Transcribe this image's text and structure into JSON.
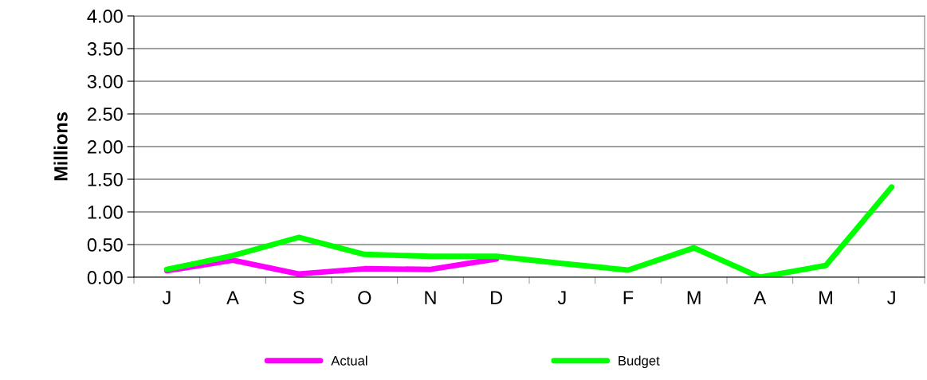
{
  "chart_data": {
    "type": "line",
    "ylabel": "Millions",
    "categories": [
      "J",
      "A",
      "S",
      "O",
      "N",
      "D",
      "J",
      "F",
      "M",
      "A",
      "M",
      "J"
    ],
    "series": [
      {
        "name": "Actual",
        "color": "#ff00ff",
        "values": [
          0.1,
          0.26,
          0.05,
          0.13,
          0.12,
          0.28,
          null,
          null,
          null,
          null,
          null,
          null
        ]
      },
      {
        "name": "Budget",
        "color": "#00ff00",
        "values": [
          0.12,
          0.33,
          0.61,
          0.35,
          0.32,
          0.32,
          0.21,
          0.11,
          0.45,
          0.0,
          0.18,
          1.38
        ]
      }
    ],
    "ylim": [
      0,
      4
    ],
    "yticks": [
      {
        "value": 0,
        "label": "0.00"
      },
      {
        "value": 0.5,
        "label": "0.50"
      },
      {
        "value": 1,
        "label": "1.00"
      },
      {
        "value": 1.5,
        "label": "1.50"
      },
      {
        "value": 2,
        "label": "2.00"
      },
      {
        "value": 2.5,
        "label": "2.50"
      },
      {
        "value": 3,
        "label": "3.00"
      },
      {
        "value": 3.5,
        "label": "3.50"
      },
      {
        "value": 4,
        "label": "4.00"
      }
    ],
    "grid": "y",
    "legend": "bottom",
    "marker": "none",
    "line_style": "solid"
  }
}
